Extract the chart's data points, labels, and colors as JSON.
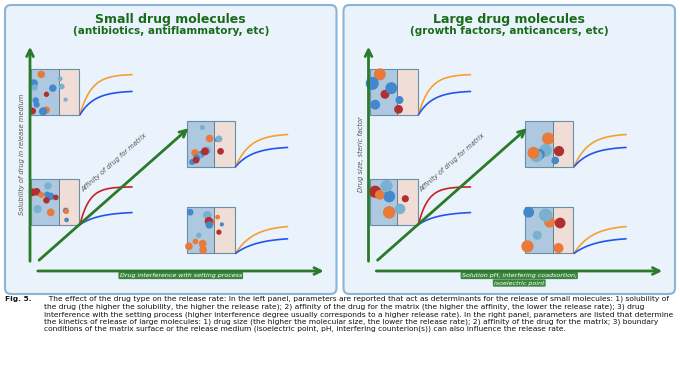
{
  "fig_width": 6.8,
  "fig_height": 3.81,
  "dpi": 100,
  "bg_color": "#ffffff",
  "panel_bg": "#eaf2fb",
  "panel_border": "#8ab4d8",
  "left_title": "Small drug molecules",
  "left_subtitle": "(antibiotics, antiflammatory, etc)",
  "right_title": "Large drug molecules",
  "right_subtitle": "(growth factors, anticancers, etc)",
  "title_color": "#1a6b1a",
  "title_fontsize": 9.0,
  "subtitle_fontsize": 7.5,
  "arrow_color": "#2a7a2a",
  "matrix_blue": "#adc8df",
  "matrix_pink": "#f0ddd5",
  "matrix_border_color": "#6890a8",
  "left_vaxis": "Solubility of drug in release medium",
  "left_diag": "Affinity of drug for matrix",
  "left_horiz": "Drug interference with setting process",
  "right_vaxis": "Drug size, steric factor",
  "right_diag": "Affinity of drug for matrix",
  "right_horiz": "Solution pH, interfering coadsortion,\nisoelectric point",
  "lbl_fontsize": 4.8,
  "lbl_color": "#555555",
  "orange": "#f5a030",
  "blue_curve": "#2255ee",
  "red_curve": "#cc2020",
  "p_orange": "#e87a3a",
  "p_blue": "#4488cc",
  "p_red": "#b03030",
  "p_lblue": "#7ab0d0",
  "caption_prefix": "Fig. 5.",
  "caption_body": "  The effect of the drug type on the release rate: In the left panel, parameters are reported that act as determinants for the release of small molecules: 1) solubility of the drug (the higher the solubility, the higher the release rate); 2) affinity of the drug for the matrix (the higher the affinity, the lower the release rate); 3) drug interference with the setting process (higher interference degree usually corresponds to a higher release rate). In the right panel, parameters are listed that determine the kinetics of release of large molecules: 1) drug size (the higher the molecular size, the lower the release rate); 2) affinity of the drug for the matrix; 3) boundary conditions of the matrix surface or the release medium (isoelectric point, pH, interfering counterion(s)) can also influence the release rate.",
  "caption_fontsize": 5.4
}
